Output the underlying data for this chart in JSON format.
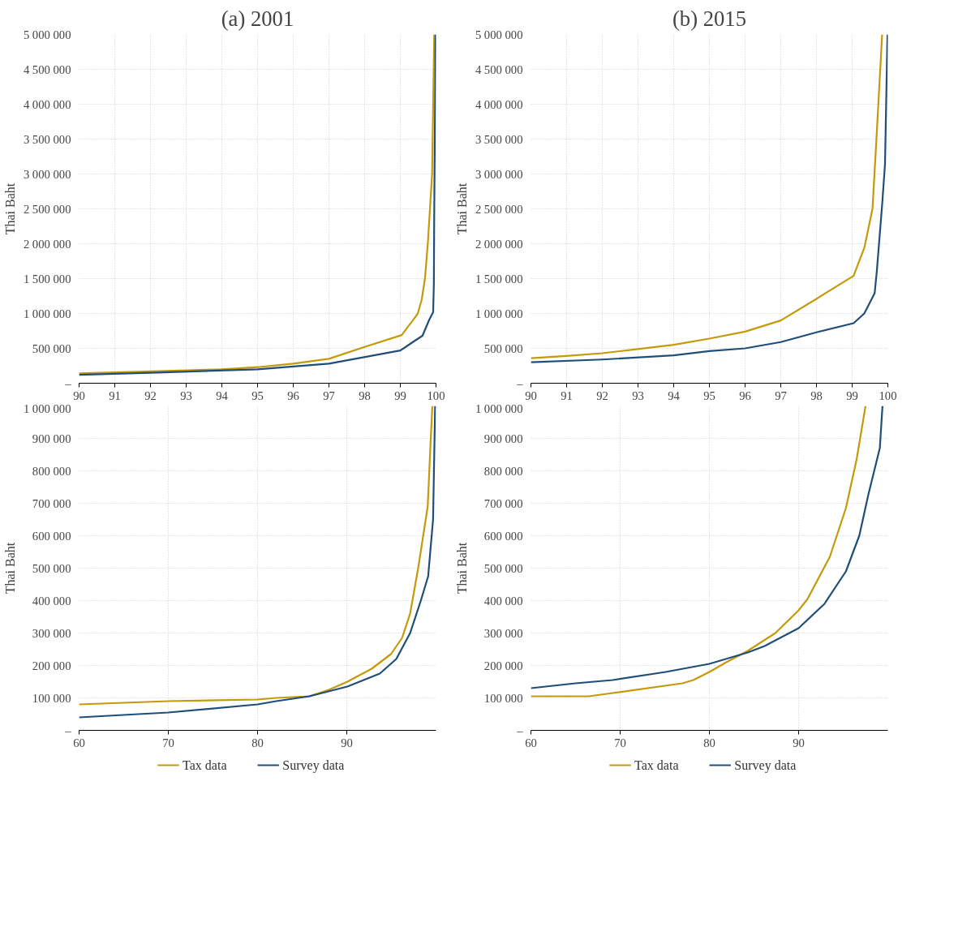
{
  "chart_data": [
    {
      "type": "line",
      "title": "(a) 2001",
      "ylabel": "Thai Baht",
      "xlim": [
        90,
        100
      ],
      "xticks": [
        90,
        91,
        92,
        93,
        94,
        95,
        96,
        97,
        98,
        99,
        100
      ],
      "ylim": [
        0,
        5000000
      ],
      "yticks": [
        {
          "value": 0,
          "label": "–"
        },
        {
          "value": 500000,
          "label": "500 000"
        },
        {
          "value": 1000000,
          "label": "1 000 000"
        },
        {
          "value": 1500000,
          "label": "1 500 000"
        },
        {
          "value": 2000000,
          "label": "2 000 000"
        },
        {
          "value": 2500000,
          "label": "2 500 000"
        },
        {
          "value": 3000000,
          "label": "3 000 000"
        },
        {
          "value": 3500000,
          "label": "3 500 000"
        },
        {
          "value": 4000000,
          "label": "4 000 000"
        },
        {
          "value": 4500000,
          "label": "4 500 000"
        },
        {
          "value": 5000000,
          "label": "5 000 000"
        }
      ],
      "grid": true,
      "series": [
        {
          "color": "#c49a0a",
          "x": [
            90,
            92,
            94,
            95,
            96,
            97,
            98,
            99.04,
            99.2,
            99.35,
            99.49,
            99.6,
            99.69,
            99.77,
            99.89,
            99.95
          ],
          "values": [
            140000,
            170000,
            200000,
            230000,
            280000,
            350000,
            520000,
            690000,
            800000,
            900000,
            1000000,
            1200000,
            1500000,
            2000000,
            3000000,
            5000000
          ]
        },
        {
          "color": "#1f4e79",
          "x": [
            90,
            92,
            95,
            97,
            99,
            99.15,
            99.35,
            99.62,
            99.81,
            99.92,
            99.94,
            99.95,
            99.99
          ],
          "values": [
            120000,
            150000,
            200000,
            280000,
            470000,
            520000,
            590000,
            680000,
            910000,
            1020000,
            1430000,
            2450000,
            5000000
          ]
        }
      ]
    },
    {
      "type": "line",
      "title": "(b) 2015",
      "ylabel": "Thai Baht",
      "xlim": [
        90,
        100
      ],
      "xticks": [
        90,
        91,
        92,
        93,
        94,
        95,
        96,
        97,
        98,
        99,
        100
      ],
      "ylim": [
        0,
        5000000
      ],
      "yticks": [
        {
          "value": 0,
          "label": "–"
        },
        {
          "value": 500000,
          "label": "500 000"
        },
        {
          "value": 1000000,
          "label": "1 000 000"
        },
        {
          "value": 1500000,
          "label": "1 500 000"
        },
        {
          "value": 2000000,
          "label": "2 000 000"
        },
        {
          "value": 2500000,
          "label": "2 500 000"
        },
        {
          "value": 3000000,
          "label": "3 000 000"
        },
        {
          "value": 3500000,
          "label": "3 500 000"
        },
        {
          "value": 4000000,
          "label": "4 000 000"
        },
        {
          "value": 4500000,
          "label": "4 500 000"
        },
        {
          "value": 5000000,
          "label": "5 000 000"
        }
      ],
      "grid": true,
      "series": [
        {
          "color": "#c49a0a",
          "x": [
            90,
            91,
            92,
            93,
            94,
            95,
            96,
            97,
            98,
            99.04,
            99.34,
            99.57,
            99.68,
            99.84
          ],
          "values": [
            360000,
            390000,
            430000,
            490000,
            550000,
            640000,
            740000,
            900000,
            1210000,
            1540000,
            1940000,
            2500000,
            3500000,
            5000000
          ]
        },
        {
          "color": "#1f4e79",
          "x": [
            90,
            92,
            94,
            95,
            96,
            97,
            98,
            99.04,
            99.34,
            99.63,
            99.69,
            99.84,
            99.92,
            99.99
          ],
          "values": [
            300000,
            340000,
            400000,
            460000,
            500000,
            590000,
            730000,
            860000,
            1000000,
            1290000,
            1600000,
            2560000,
            3140000,
            5000000
          ]
        }
      ]
    },
    {
      "type": "line",
      "ylabel": "Thai Baht",
      "xlim": [
        60,
        100
      ],
      "xticks": [
        60,
        70,
        80,
        90
      ],
      "ylim": [
        0,
        1000000
      ],
      "yticks": [
        {
          "value": 0,
          "label": "–"
        },
        {
          "value": 100000,
          "label": "100 000"
        },
        {
          "value": 200000,
          "label": "200 000"
        },
        {
          "value": 300000,
          "label": "300 000"
        },
        {
          "value": 400000,
          "label": "400 000"
        },
        {
          "value": 500000,
          "label": "500 000"
        },
        {
          "value": 600000,
          "label": "600 000"
        },
        {
          "value": 700000,
          "label": "700 000"
        },
        {
          "value": 800000,
          "label": "800 000"
        },
        {
          "value": 900000,
          "label": "900 000"
        },
        {
          "value": 1000000,
          "label": "1 000 000"
        }
      ],
      "grid": true,
      "legend": "bottom",
      "series": [
        {
          "name": "Tax data",
          "color": "#c49a0a",
          "x": [
            60,
            70,
            80,
            82.1,
            85.8,
            88,
            90.07,
            92.8,
            94.95,
            96.2,
            97.1,
            98,
            99.07,
            99.37,
            99.59
          ],
          "values": [
            80000,
            90000,
            95000,
            100000,
            105000,
            125000,
            150000,
            190000,
            235000,
            285000,
            360000,
            500000,
            690000,
            875000,
            1000000
          ]
        },
        {
          "name": "Survey data",
          "color": "#1f4e79",
          "x": [
            60,
            70,
            80,
            82.1,
            85.8,
            90.07,
            93.7,
            95.55,
            97.1,
            98.3,
            99.12,
            99.67,
            99.9
          ],
          "values": [
            40000,
            55000,
            80000,
            90000,
            105000,
            135000,
            175000,
            220000,
            300000,
            400000,
            475000,
            650000,
            1000000
          ]
        }
      ]
    },
    {
      "type": "line",
      "ylabel": "Thai Baht",
      "xlim": [
        60,
        100
      ],
      "xticks": [
        60,
        70,
        80,
        90
      ],
      "ylim": [
        0,
        1000000
      ],
      "yticks": [
        {
          "value": 0,
          "label": "–"
        },
        {
          "value": 100000,
          "label": "100 000"
        },
        {
          "value": 200000,
          "label": "200 000"
        },
        {
          "value": 300000,
          "label": "300 000"
        },
        {
          "value": 400000,
          "label": "400 000"
        },
        {
          "value": 500000,
          "label": "500 000"
        },
        {
          "value": 600000,
          "label": "600 000"
        },
        {
          "value": 700000,
          "label": "700 000"
        },
        {
          "value": 800000,
          "label": "800 000"
        },
        {
          "value": 900000,
          "label": "900 000"
        },
        {
          "value": 1000000,
          "label": "1 000 000"
        }
      ],
      "grid": true,
      "legend": "bottom",
      "series": [
        {
          "name": "Tax data",
          "color": "#c49a0a",
          "x": [
            60,
            66.5,
            69.15,
            76.97,
            78.2,
            80,
            81.9,
            84.3,
            87.4,
            90,
            91,
            93.5,
            95.3,
            96.5,
            97.5
          ],
          "values": [
            105000,
            105000,
            115000,
            145000,
            155000,
            180000,
            210000,
            245000,
            300000,
            370000,
            405000,
            535000,
            685000,
            835000,
            1000000
          ]
        },
        {
          "name": "Survey data",
          "color": "#1f4e79",
          "x": [
            60,
            65,
            69.15,
            75.1,
            80,
            84.3,
            86.2,
            90,
            92.9,
            95.3,
            96.8,
            97.8,
            99.1,
            99.4
          ],
          "values": [
            130000,
            145000,
            155000,
            180000,
            205000,
            240000,
            260000,
            315000,
            390000,
            490000,
            600000,
            725000,
            870000,
            1000000
          ]
        }
      ]
    }
  ]
}
